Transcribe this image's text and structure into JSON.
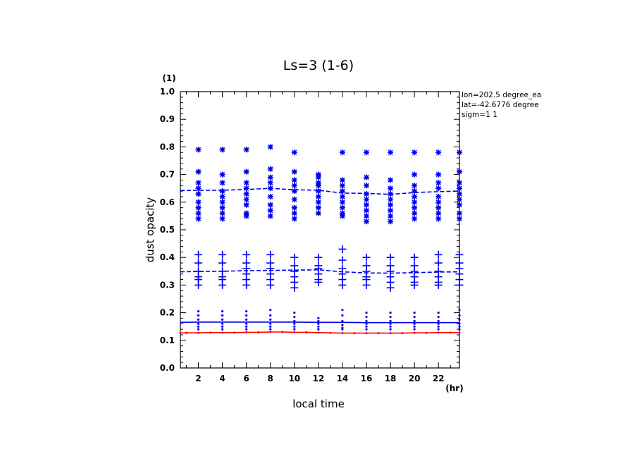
{
  "chart_data": {
    "type": "scatter",
    "title": "Ls=3 (1-6)",
    "xlabel": "local time",
    "ylabel": "dust opacity",
    "x_unit": "(hr)",
    "y_unit": "(1)",
    "xlim": [
      0.5,
      23.75
    ],
    "ylim": [
      0,
      1.0
    ],
    "xticks": [
      2,
      4,
      6,
      8,
      10,
      12,
      14,
      16,
      18,
      20,
      22
    ],
    "yticks": [
      "0.0",
      "0.1",
      "0.2",
      "0.3",
      "0.4",
      "0.5",
      "0.6",
      "0.7",
      "0.8",
      "0.9",
      "1.0"
    ],
    "annotations": [
      "lon=202.5 degree_ea",
      "lat=-42.6776 degree",
      "sigm=1 1"
    ],
    "colors": {
      "blue": "#0000ee",
      "red": "#ff0000"
    },
    "x": [
      2,
      4,
      6,
      8,
      10,
      12,
      14,
      16,
      18,
      20,
      22,
      23.75
    ],
    "series": [
      {
        "marker": "star",
        "color": "#0000ee",
        "values": [
          [
            0.79,
            0.71,
            0.67,
            0.65,
            0.63,
            0.6,
            0.58,
            0.56,
            0.54
          ],
          [
            0.79,
            0.7,
            0.67,
            0.64,
            0.62,
            0.6,
            0.58,
            0.56,
            0.54
          ],
          [
            0.79,
            0.71,
            0.67,
            0.65,
            0.63,
            0.61,
            0.59,
            0.56,
            0.55
          ],
          [
            0.8,
            0.72,
            0.69,
            0.67,
            0.65,
            0.62,
            0.59,
            0.57,
            0.55
          ],
          [
            0.78,
            0.71,
            0.68,
            0.66,
            0.64,
            0.61,
            0.58,
            0.56,
            0.54
          ],
          [
            0.7,
            0.69,
            0.67,
            0.66,
            0.64,
            0.62,
            0.6,
            0.58,
            0.56
          ],
          [
            0.78,
            0.68,
            0.66,
            0.64,
            0.62,
            0.6,
            0.58,
            0.56,
            0.55
          ],
          [
            0.78,
            0.69,
            0.66,
            0.63,
            0.61,
            0.59,
            0.57,
            0.55,
            0.53
          ],
          [
            0.78,
            0.68,
            0.65,
            0.63,
            0.61,
            0.59,
            0.57,
            0.55,
            0.53
          ],
          [
            0.78,
            0.7,
            0.66,
            0.64,
            0.62,
            0.6,
            0.58,
            0.56,
            0.54
          ],
          [
            0.78,
            0.7,
            0.67,
            0.65,
            0.62,
            0.6,
            0.58,
            0.56,
            0.54
          ],
          [
            0.78,
            0.71,
            0.67,
            0.65,
            0.63,
            0.61,
            0.59,
            0.56,
            0.54
          ]
        ]
      },
      {
        "marker": "dashed-line",
        "color": "#0000ee",
        "x": [
          0.5,
          2,
          4,
          6,
          8,
          10,
          12,
          14,
          16,
          18,
          20,
          22,
          23.75
        ],
        "values": [
          0.642,
          0.643,
          0.643,
          0.646,
          0.65,
          0.645,
          0.643,
          0.633,
          0.632,
          0.628,
          0.635,
          0.638,
          0.64
        ]
      },
      {
        "marker": "plus",
        "color": "#0000ee",
        "values": [
          [
            0.41,
            0.38,
            0.35,
            0.33,
            0.32,
            0.3
          ],
          [
            0.41,
            0.38,
            0.35,
            0.33,
            0.32,
            0.3
          ],
          [
            0.41,
            0.38,
            0.36,
            0.34,
            0.32,
            0.3
          ],
          [
            0.41,
            0.38,
            0.36,
            0.34,
            0.32,
            0.3
          ],
          [
            0.4,
            0.37,
            0.35,
            0.33,
            0.31,
            0.29
          ],
          [
            0.4,
            0.37,
            0.36,
            0.34,
            0.32,
            0.31
          ],
          [
            0.43,
            0.39,
            0.36,
            0.34,
            0.32,
            0.3
          ],
          [
            0.4,
            0.37,
            0.35,
            0.33,
            0.32,
            0.3
          ],
          [
            0.4,
            0.37,
            0.35,
            0.33,
            0.31,
            0.29
          ],
          [
            0.4,
            0.37,
            0.35,
            0.33,
            0.31,
            0.3
          ],
          [
            0.41,
            0.38,
            0.35,
            0.33,
            0.31,
            0.3
          ],
          [
            0.41,
            0.38,
            0.36,
            0.34,
            0.32,
            0.3
          ]
        ]
      },
      {
        "marker": "dashed-line",
        "color": "#0000ee",
        "x": [
          0.5,
          2,
          4,
          6,
          8,
          10,
          12,
          14,
          16,
          18,
          20,
          22,
          23.75
        ],
        "values": [
          0.348,
          0.349,
          0.35,
          0.352,
          0.353,
          0.354,
          0.355,
          0.348,
          0.344,
          0.343,
          0.345,
          0.347,
          0.348
        ]
      },
      {
        "marker": "dot",
        "color": "#0000ee",
        "values": [
          [
            0.205,
            0.19,
            0.175,
            0.16,
            0.15,
            0.14
          ],
          [
            0.205,
            0.19,
            0.175,
            0.16,
            0.15,
            0.14
          ],
          [
            0.205,
            0.19,
            0.175,
            0.16,
            0.15,
            0.14
          ],
          [
            0.21,
            0.19,
            0.175,
            0.16,
            0.15,
            0.14
          ],
          [
            0.2,
            0.185,
            0.17,
            0.16,
            0.15,
            0.14
          ],
          [
            0.18,
            0.17,
            0.16,
            0.15,
            0.14,
            0.14
          ],
          [
            0.21,
            0.19,
            0.17,
            0.155,
            0.145,
            0.14
          ],
          [
            0.2,
            0.185,
            0.17,
            0.16,
            0.15,
            0.14
          ],
          [
            0.2,
            0.185,
            0.17,
            0.16,
            0.15,
            0.14
          ],
          [
            0.2,
            0.185,
            0.17,
            0.16,
            0.15,
            0.14
          ],
          [
            0.2,
            0.185,
            0.17,
            0.16,
            0.15,
            0.14
          ],
          [
            0.21,
            0.19,
            0.175,
            0.16,
            0.15,
            0.14
          ]
        ]
      },
      {
        "marker": "line",
        "color": "#0000ee",
        "x": [
          0.5,
          2,
          4,
          6,
          8,
          10,
          12,
          14,
          16,
          18,
          20,
          22,
          23.75
        ],
        "values": [
          0.165,
          0.166,
          0.166,
          0.166,
          0.166,
          0.166,
          0.165,
          0.165,
          0.164,
          0.164,
          0.164,
          0.164,
          0.164
        ]
      },
      {
        "marker": "line-dots",
        "color": "#ff0000",
        "x": [
          0.5,
          1,
          2,
          3,
          4,
          5,
          6,
          7,
          8,
          9,
          10,
          11,
          12,
          13,
          14,
          15,
          16,
          17,
          18,
          19,
          20,
          21,
          22,
          23,
          23.75
        ],
        "values": [
          0.127,
          0.127,
          0.127,
          0.128,
          0.128,
          0.128,
          0.129,
          0.129,
          0.13,
          0.13,
          0.129,
          0.129,
          0.128,
          0.127,
          0.126,
          0.126,
          0.126,
          0.126,
          0.126,
          0.126,
          0.127,
          0.127,
          0.128,
          0.128,
          0.128
        ]
      }
    ]
  }
}
